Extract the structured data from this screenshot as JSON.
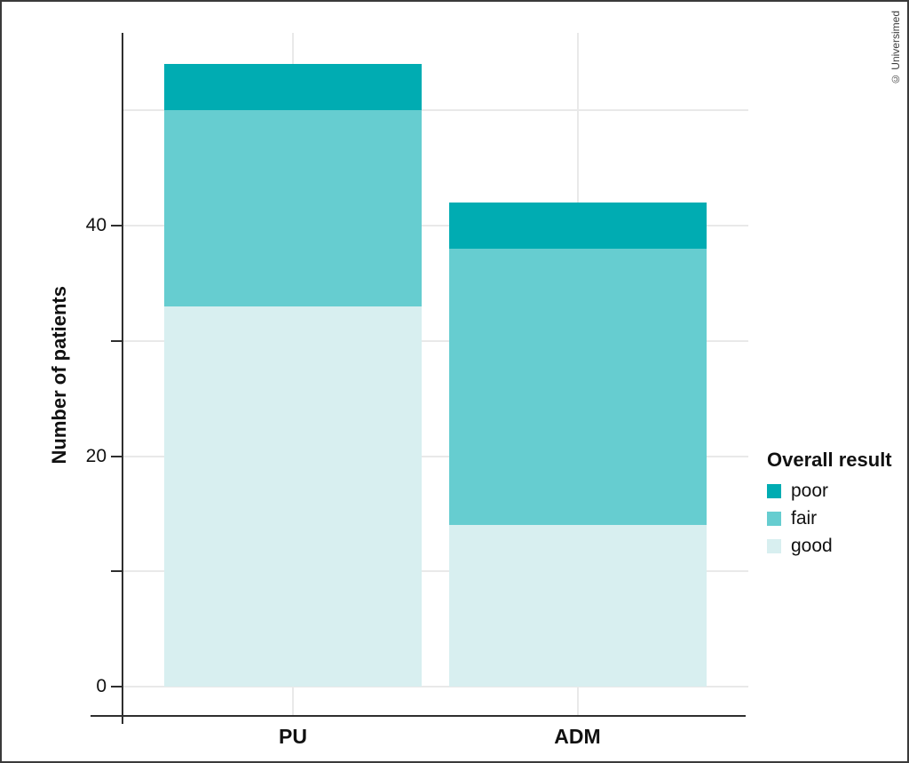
{
  "watermark": "© Universimed",
  "chart_data": {
    "type": "bar",
    "stacked": true,
    "title": "",
    "xlabel": "",
    "ylabel": "Number of patients",
    "categories": [
      "PU",
      "ADM"
    ],
    "series": [
      {
        "name": "good",
        "color": "#d8eff0",
        "values": [
          33,
          14
        ]
      },
      {
        "name": "fair",
        "color": "#66cdd0",
        "values": [
          17,
          24
        ]
      },
      {
        "name": "poor",
        "color": "#00acb2",
        "values": [
          4,
          4
        ]
      }
    ],
    "stack_totals": [
      54,
      42
    ],
    "ylim": [
      0,
      57
    ],
    "yticks_labeled": [
      0,
      20,
      40
    ],
    "yticks_all": [
      0,
      10,
      20,
      30,
      40
    ],
    "gridlines_y": [
      0,
      10,
      20,
      30,
      40,
      50
    ],
    "grid": true,
    "legend": {
      "title": "Overall result",
      "position": "right",
      "entries": [
        "poor",
        "fair",
        "good"
      ]
    },
    "colors": {
      "poor": "#00acb2",
      "fair": "#66cdd0",
      "good": "#d8eff0",
      "axis": "#2e2e2e",
      "gridline": "#e9e9e9",
      "text": "#111111"
    }
  }
}
